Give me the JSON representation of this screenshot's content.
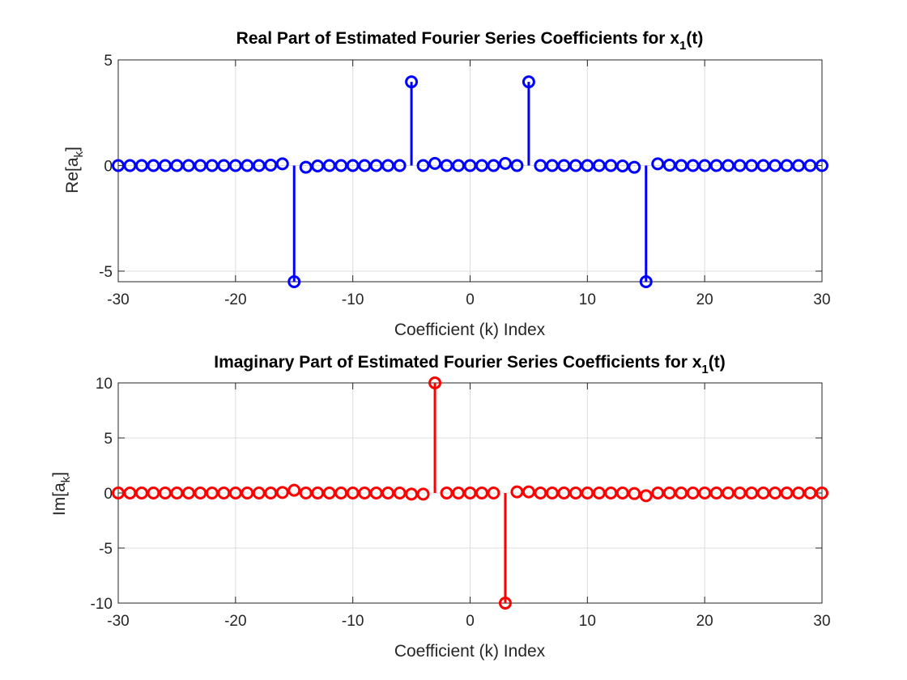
{
  "chart_data": [
    {
      "type": "stem",
      "title": "Real Part of Estimated Fourier Series Coefficients for x",
      "title_subscript": "1",
      "title_suffix": "(t)",
      "xlabel": "Coefficient (k) Index",
      "ylabel": "Re[a",
      "ylabel_subscript": "k",
      "ylabel_suffix": "]",
      "xlim": [
        -30,
        30
      ],
      "ylim": [
        -5.5,
        5
      ],
      "xticks": [
        "-30",
        "-20",
        "-10",
        "0",
        "10",
        "20",
        "30"
      ],
      "yticks": [
        "-5",
        "0",
        "5"
      ],
      "grid": true,
      "color": "#0000ff",
      "series": [
        {
          "x": [
            -30,
            -29,
            -28,
            -27,
            -26,
            -25,
            -24,
            -23,
            -22,
            -21,
            -20,
            -19,
            -18,
            -17,
            -16,
            -15,
            -14,
            -13,
            -12,
            -11,
            -10,
            -9,
            -8,
            -7,
            -6,
            -5,
            -4,
            -3,
            -2,
            -1,
            0,
            1,
            2,
            3,
            4,
            5,
            6,
            7,
            8,
            9,
            10,
            11,
            12,
            13,
            14,
            15,
            16,
            17,
            18,
            19,
            20,
            21,
            22,
            23,
            24,
            25,
            26,
            27,
            28,
            29,
            30
          ],
          "y": [
            0,
            0,
            0,
            0,
            0,
            0,
            0,
            0,
            0,
            0,
            0,
            0,
            0,
            0.02,
            0.08,
            -5.5,
            -0.08,
            -0.02,
            0,
            0,
            0,
            0,
            0,
            0,
            0,
            3.96,
            0,
            0.1,
            0,
            0,
            0,
            0,
            0,
            0.1,
            0,
            3.96,
            0,
            0,
            0,
            0,
            0,
            0,
            0,
            -0.02,
            -0.08,
            -5.5,
            0.08,
            0.02,
            0,
            0,
            0,
            0,
            0,
            0,
            0,
            0,
            0,
            0,
            0,
            0,
            0
          ]
        }
      ]
    },
    {
      "type": "stem",
      "title": "Imaginary Part of Estimated Fourier Series Coefficients for x",
      "title_subscript": "1",
      "title_suffix": "(t)",
      "xlabel": "Coefficient (k) Index",
      "ylabel": "Im[a",
      "ylabel_subscript": "k",
      "ylabel_suffix": "]",
      "xlim": [
        -30,
        30
      ],
      "ylim": [
        -10,
        10
      ],
      "xticks": [
        "-30",
        "-20",
        "-10",
        "0",
        "10",
        "20",
        "30"
      ],
      "yticks": [
        "-10",
        "-5",
        "0",
        "5",
        "10"
      ],
      "grid": true,
      "color": "#ff0000",
      "series": [
        {
          "x": [
            -30,
            -29,
            -28,
            -27,
            -26,
            -25,
            -24,
            -23,
            -22,
            -21,
            -20,
            -19,
            -18,
            -17,
            -16,
            -15,
            -14,
            -13,
            -12,
            -11,
            -10,
            -9,
            -8,
            -7,
            -6,
            -5,
            -4,
            -3,
            -2,
            -1,
            0,
            1,
            2,
            3,
            4,
            5,
            6,
            7,
            8,
            9,
            10,
            11,
            12,
            13,
            14,
            15,
            16,
            17,
            18,
            19,
            20,
            21,
            22,
            23,
            24,
            25,
            26,
            27,
            28,
            29,
            30
          ],
          "y": [
            0,
            0,
            0,
            0,
            0,
            0,
            0,
            0,
            0,
            0,
            0,
            0,
            0,
            0,
            0.05,
            0.25,
            0,
            0,
            0,
            0,
            0,
            0,
            0,
            0,
            0,
            -0.1,
            -0.1,
            10,
            0,
            0,
            0,
            0,
            0,
            -10,
            0.1,
            0.1,
            0,
            0,
            0,
            0,
            0,
            0,
            0,
            0,
            -0.05,
            -0.25,
            0,
            0,
            0,
            0,
            0,
            0,
            0,
            0,
            0,
            0,
            0,
            0,
            0,
            0,
            0
          ]
        }
      ]
    }
  ]
}
